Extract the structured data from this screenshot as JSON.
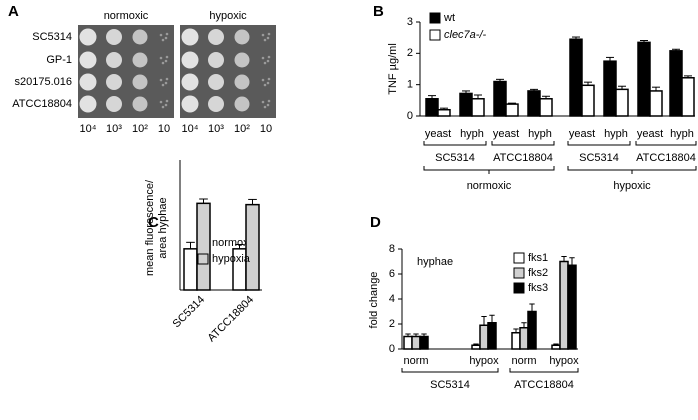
{
  "chart_data": [
    {
      "type": "spot-assay",
      "label": "A",
      "conditions": [
        "normoxic",
        "hypoxic"
      ],
      "strains": [
        "SC5314",
        "GP-1",
        "s20175.016",
        "ATCC18804"
      ],
      "dilutions": [
        "10⁴",
        "10³",
        "10²",
        "10"
      ]
    },
    {
      "type": "bar",
      "label": "B",
      "ylabel": "TNF µg/ml",
      "categories": [
        "yeast",
        "hyph",
        "yeast",
        "hyph",
        "yeast",
        "hyph",
        "yeast",
        "hyph"
      ],
      "groups": [
        "SC5314",
        "ATCC18804",
        "SC5314",
        "ATCC18804"
      ],
      "supergroups": [
        "normoxic",
        "hypoxic"
      ],
      "series": [
        {
          "name": "wt",
          "color": "#000000",
          "values": [
            0.55,
            0.72,
            1.1,
            0.8,
            2.45,
            1.75,
            2.35,
            2.08
          ],
          "errors": [
            0.1,
            0.08,
            0.07,
            0.05,
            0.07,
            0.12,
            0.06,
            0.05
          ]
        },
        {
          "name": "clec7a-/-",
          "color": "#ffffff",
          "values": [
            0.2,
            0.55,
            0.38,
            0.55,
            0.98,
            0.85,
            0.8,
            1.22
          ],
          "errors": [
            0.05,
            0.12,
            0.03,
            0.08,
            0.1,
            0.1,
            0.12,
            0.06
          ]
        }
      ],
      "ylim": [
        0,
        3
      ],
      "yticks": [
        0,
        1,
        2,
        3
      ]
    },
    {
      "type": "bar",
      "label": "C",
      "ylabel": [
        "mean fluorescence/",
        "area hyphae"
      ],
      "categories": [
        "SC5314",
        "ATCC18804"
      ],
      "series": [
        {
          "name": "normoxia",
          "color": "#ffffff",
          "values": [
            0.95,
            0.95
          ],
          "errors": [
            0.15,
            0.1
          ]
        },
        {
          "name": "hypoxia",
          "color": "#d0d0d0",
          "values": [
            2.0,
            1.97
          ],
          "errors": [
            0.1,
            0.12
          ]
        }
      ],
      "ylim": [
        0,
        3
      ]
    },
    {
      "type": "bar",
      "label": "D",
      "ylabel": "fold change",
      "annotation": "hyphae",
      "categories": [
        "norm",
        "hypox",
        "norm",
        "hypox"
      ],
      "groups": [
        "SC5314",
        "ATCC18804"
      ],
      "series": [
        {
          "name": "fks1",
          "color": "#ffffff",
          "values": [
            1.0,
            0.3,
            1.3,
            0.3
          ],
          "errors": [
            0.2,
            0.1,
            0.3,
            0.1
          ]
        },
        {
          "name": "fks2",
          "color": "#d0d0d0",
          "values": [
            1.0,
            1.9,
            1.7,
            7.0
          ],
          "errors": [
            0.2,
            0.7,
            0.4,
            0.4
          ]
        },
        {
          "name": "fks3",
          "color": "#000000",
          "values": [
            1.0,
            2.1,
            3.0,
            6.7
          ],
          "errors": [
            0.2,
            0.6,
            0.6,
            0.6
          ]
        }
      ],
      "ylim": [
        0,
        8
      ],
      "yticks": [
        0,
        2,
        4,
        6,
        8
      ]
    }
  ]
}
